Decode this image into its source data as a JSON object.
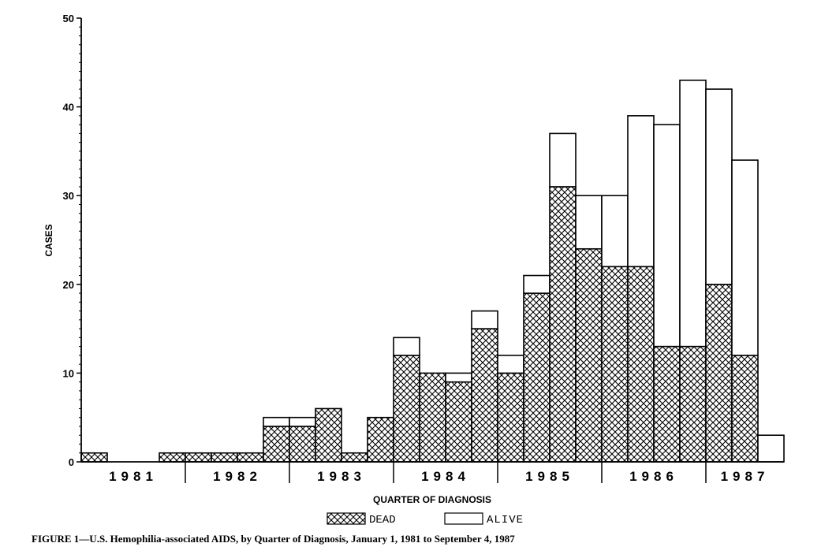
{
  "caption": "FIGURE 1—U.S. Hemophilia-associated AIDS, by Quarter of Diagnosis, January 1, 1981 to September 4, 1987",
  "chart_data": {
    "type": "bar",
    "stacked": true,
    "title": "",
    "xlabel": "QUARTER OF DIAGNOSIS",
    "ylabel": "CASES",
    "ylim": [
      0,
      50
    ],
    "yticks": [
      0,
      10,
      20,
      30,
      40,
      50
    ],
    "grid": false,
    "legend_position": "bottom",
    "year_labels": [
      "1981",
      "1982",
      "1983",
      "1984",
      "1985",
      "1986",
      "1987"
    ],
    "categories": [
      "1981 Q1",
      "1981 Q2",
      "1981 Q3",
      "1981 Q4",
      "1982 Q1",
      "1982 Q2",
      "1982 Q3",
      "1982 Q4",
      "1983 Q1",
      "1983 Q2",
      "1983 Q3",
      "1983 Q4",
      "1984 Q1",
      "1984 Q2",
      "1984 Q3",
      "1984 Q4",
      "1985 Q1",
      "1985 Q2",
      "1985 Q3",
      "1985 Q4",
      "1986 Q1",
      "1986 Q2",
      "1986 Q3",
      "1986 Q4",
      "1987 Q1",
      "1987 Q2",
      "1987 Q3"
    ],
    "series": [
      {
        "name": "DEAD",
        "pattern": "crosshatch",
        "values": [
          1,
          0,
          0,
          1,
          1,
          1,
          1,
          4,
          4,
          6,
          1,
          5,
          12,
          10,
          9,
          15,
          10,
          19,
          31,
          24,
          22,
          22,
          13,
          13,
          20,
          12,
          0
        ]
      },
      {
        "name": "ALIVE",
        "pattern": "none",
        "values": [
          0,
          0,
          0,
          0,
          0,
          0,
          0,
          1,
          1,
          0,
          0,
          0,
          2,
          0,
          1,
          2,
          2,
          2,
          6,
          6,
          8,
          17,
          25,
          30,
          22,
          22,
          3
        ]
      }
    ]
  }
}
